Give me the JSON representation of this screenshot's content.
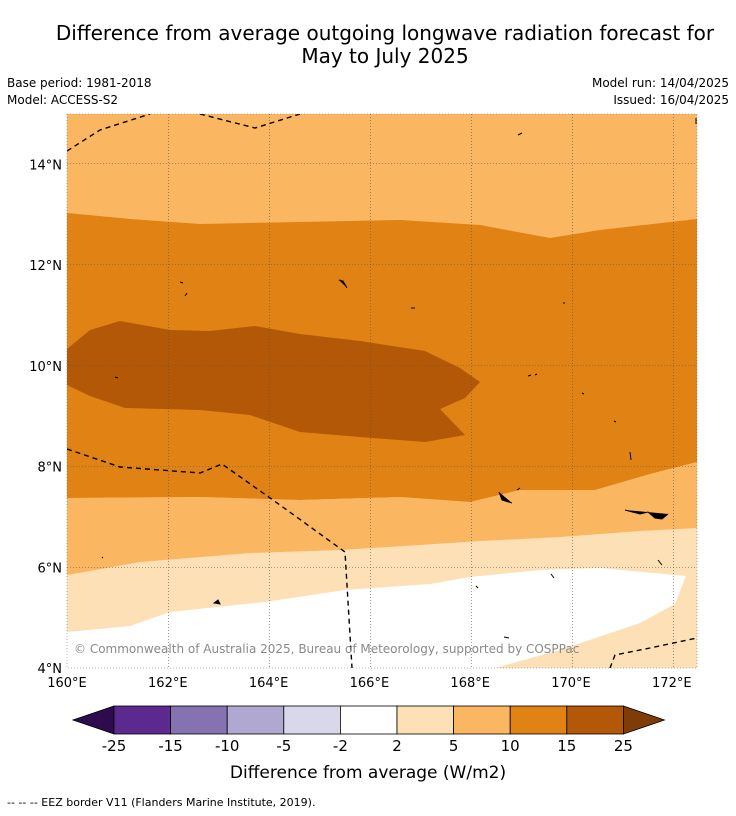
{
  "title_line1": "Difference from average outgoing longwave radiation forecast for",
  "title_line2": "May to July 2025",
  "base_period": "Base period: 1981-2018",
  "model": "Model: ACCESS-S2",
  "model_run": "Model run: 14/04/2025",
  "issued": "Issued: 16/04/2025",
  "copyright": "© Commonwealth of Australia 2025, Bureau of Meteorology, supported by COSPPac",
  "footer": "-- -- -- EEZ border V11 (Flanders Marine Institute, 2019).",
  "colorbar": {
    "title": "Difference from average (W/m2)",
    "labels": [
      "-25",
      "-15",
      "-10",
      "-5",
      "-2",
      "2",
      "5",
      "10",
      "15",
      "25"
    ],
    "colors": [
      "#2e0a4e",
      "#5c2a8e",
      "#8473b0",
      "#b1a8d2",
      "#d8d8ea",
      "#ffffff",
      "#fde0b6",
      "#fbb661",
      "#e08214",
      "#b35806",
      "#7f3b08"
    ]
  },
  "chart_data": {
    "type": "map",
    "xlabel": "",
    "ylabel": "",
    "xlim": [
      160,
      172.5
    ],
    "ylim": [
      4,
      15
    ],
    "x_ticks": [
      "160°E",
      "162°E",
      "164°E",
      "166°E",
      "168°E",
      "170°E",
      "172°E"
    ],
    "y_ticks": [
      "4°N",
      "6°N",
      "8°N",
      "10°N",
      "12°N",
      "14°N"
    ],
    "x_tick_values": [
      160,
      162,
      164,
      166,
      168,
      170,
      172
    ],
    "y_tick_values": [
      4,
      6,
      8,
      10,
      12,
      14
    ],
    "legend_placement": "bottom",
    "grid": true,
    "filled_regions": [
      {
        "range": "5 to 10",
        "color": "#fbb661",
        "note": "north of about 12.9°N"
      },
      {
        "range": "10 to 15",
        "color": "#e08214",
        "note": "band from about 7.4°N to 12.9°N"
      },
      {
        "range": "15 to 25",
        "color": "#b35806",
        "note": "tongue from 160°E to about 168°E, 8.6°N to 10.8°N"
      },
      {
        "range": "5 to 10",
        "color": "#fbb661",
        "note": "band from about 6°N to 7.4°N"
      },
      {
        "range": "2 to 5",
        "color": "#fde0b6",
        "note": "band from about 4.7°N to 6°N"
      },
      {
        "range": "-2 to 2",
        "color": "#ffffff",
        "note": "south-east corner below about 5.9°N"
      }
    ]
  }
}
